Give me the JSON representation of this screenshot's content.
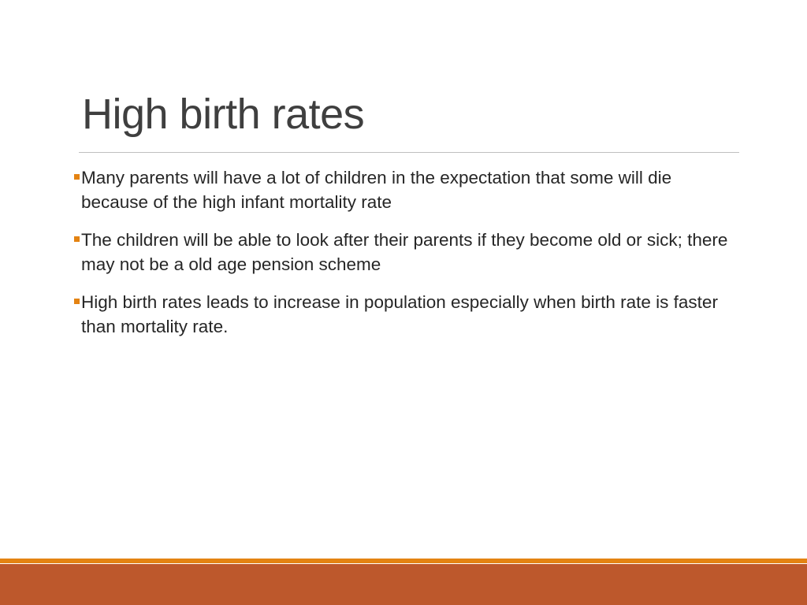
{
  "slide": {
    "title": "High birth rates",
    "bullets": [
      {
        "text": "Many parents will have a lot of children in the expectation that some will die because of the high infant mortality rate"
      },
      {
        "text": "The children will be able to look after their parents if they become old or sick; there may not be a old age pension scheme"
      },
      {
        "text": "High birth rates leads to increase in population especially when birth rate is faster than mortality rate."
      }
    ]
  },
  "theme": {
    "accent": "#e48312",
    "footer_band": "#bd582c",
    "title_color": "#3f3f3f",
    "text_color": "#262626"
  }
}
